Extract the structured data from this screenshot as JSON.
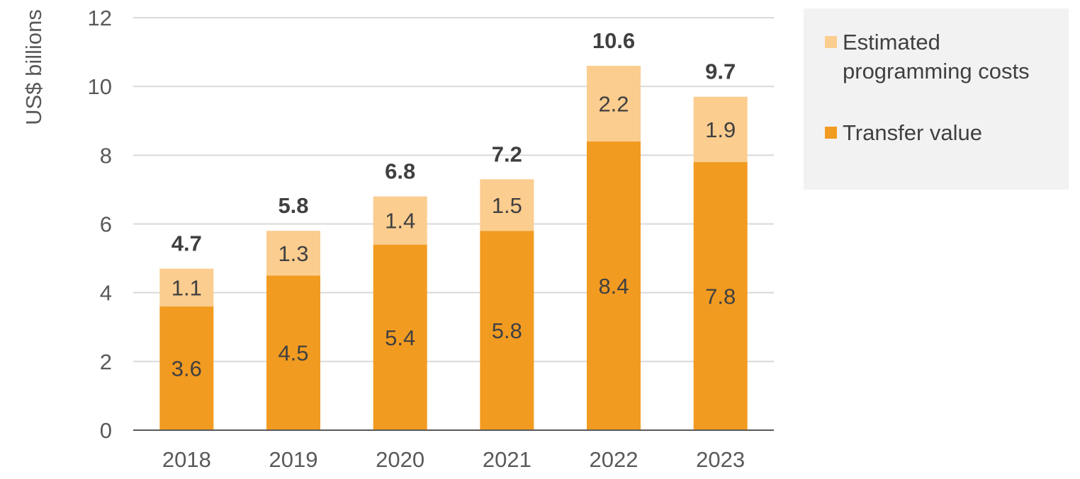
{
  "chart_data": {
    "type": "bar",
    "stacked": true,
    "categories": [
      "2018",
      "2019",
      "2020",
      "2021",
      "2022",
      "2023"
    ],
    "series": [
      {
        "name": "Transfer value",
        "color": "#f29b21",
        "values": [
          3.6,
          4.5,
          5.4,
          5.8,
          8.4,
          7.8
        ]
      },
      {
        "name": "Estimated programming costs",
        "color": "#fbcd8f",
        "values": [
          1.1,
          1.3,
          1.4,
          1.5,
          2.2,
          1.9
        ]
      }
    ],
    "totals": [
      "4.7",
      "5.8",
      "6.8",
      "7.2",
      "10.6",
      "9.7"
    ],
    "series_labels": [
      [
        "3.6",
        "4.5",
        "5.4",
        "5.8",
        "8.4",
        "7.8"
      ],
      [
        "1.1",
        "1.3",
        "1.4",
        "1.5",
        "2.2",
        "1.9"
      ]
    ],
    "ylabel": "US$ billions",
    "xlabel": "",
    "title": "",
    "ylim": [
      0,
      12
    ],
    "yticks": [
      0,
      2,
      4,
      6,
      8,
      10,
      12
    ],
    "grid": true,
    "legend_position": "top-right",
    "legend_order": [
      "Estimated programming costs",
      "Transfer value"
    ]
  }
}
